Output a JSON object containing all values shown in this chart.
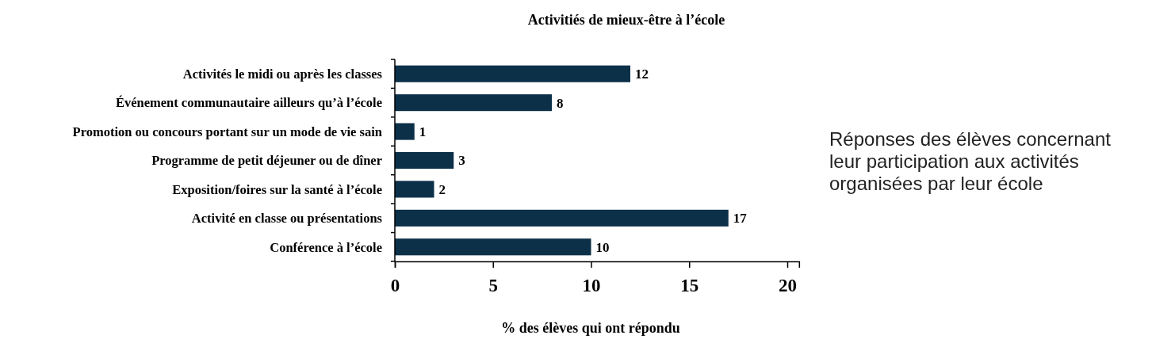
{
  "chart_data": {
    "type": "bar",
    "orientation": "horizontal",
    "title": "Activitiés de mieux-être à l’école",
    "xlabel": "% des élèves qui ont répondu",
    "categories": [
      "Activités le midi ou après les classes",
      "Événement communautaire ailleurs qu’à l’école",
      "Promotion ou concours portant sur un mode de vie sain",
      "Programme de petit déjeuner ou de dîner",
      "Exposition/foires sur la santé à l’école",
      "Activité en classe ou présentations",
      "Conférence à l’école"
    ],
    "values": [
      12,
      8,
      1,
      3,
      2,
      17,
      10
    ],
    "color": "#0d3049",
    "xlim": [
      0,
      20.6
    ],
    "xticks": [
      0,
      5,
      10,
      15,
      20
    ],
    "data_labels": true,
    "annotations": [
      "Réponses des élèves concernant leur participation aux activités organisées par leur école"
    ]
  }
}
